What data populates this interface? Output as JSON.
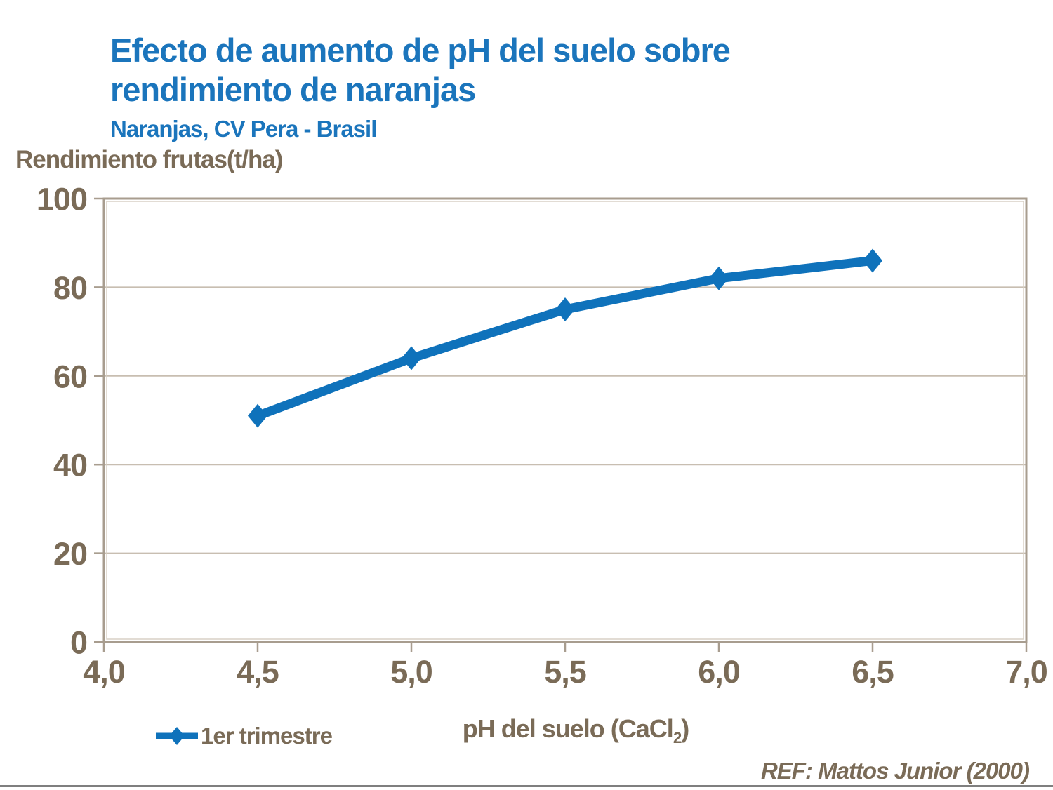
{
  "page": {
    "title_line1": "Efecto de aumento de pH del suelo sobre",
    "title_line2": "rendimiento de naranjas",
    "subtitle": "Naranjas, CV Pera - Brasil",
    "reference": "REF: Mattos Junior (2000)"
  },
  "colors": {
    "title_blue": "#1b75bc",
    "series_blue": "#0f72bb",
    "axis_text": "#7a6b57",
    "gridline": "#c8beb1",
    "plot_border": "#a89d8f",
    "plot_border_inner": "#d8d1c5",
    "bottom_rule": "#7f7f7f"
  },
  "chart_data": {
    "type": "line",
    "title": "Efecto de aumento de pH del suelo sobre rendimiento de naranjas",
    "subtitle": "Naranjas, CV Pera - Brasil",
    "xlabel": "pH del suelo (CaCl2)",
    "xlabel_parts": {
      "text": "pH del suelo (CaCl",
      "sub": "2",
      "suffix": ")"
    },
    "ylabel": "Rendimiento frutas(t/ha)",
    "xlim": [
      4.0,
      7.0
    ],
    "ylim": [
      0,
      100
    ],
    "x_ticks": [
      {
        "value": 4.0,
        "label": "4,0"
      },
      {
        "value": 4.5,
        "label": "4,5"
      },
      {
        "value": 5.0,
        "label": "5,0"
      },
      {
        "value": 5.5,
        "label": "5,5"
      },
      {
        "value": 6.0,
        "label": "6,0"
      },
      {
        "value": 6.5,
        "label": "6,5"
      },
      {
        "value": 7.0,
        "label": "7,0"
      }
    ],
    "y_ticks": [
      {
        "value": 0,
        "label": "0"
      },
      {
        "value": 20,
        "label": "20"
      },
      {
        "value": 40,
        "label": "40"
      },
      {
        "value": 60,
        "label": "60"
      },
      {
        "value": 80,
        "label": "80"
      },
      {
        "value": 100,
        "label": "100"
      }
    ],
    "grid": "horizontal",
    "legend": {
      "position": "bottom-left",
      "entries": [
        {
          "label": "1er trimestre",
          "color": "#0f72bb",
          "marker": "diamond"
        }
      ]
    },
    "series": [
      {
        "name": "1er trimestre",
        "x": [
          4.5,
          5.0,
          5.5,
          6.0,
          6.5
        ],
        "y": [
          51,
          64,
          75,
          82,
          86
        ]
      }
    ]
  }
}
